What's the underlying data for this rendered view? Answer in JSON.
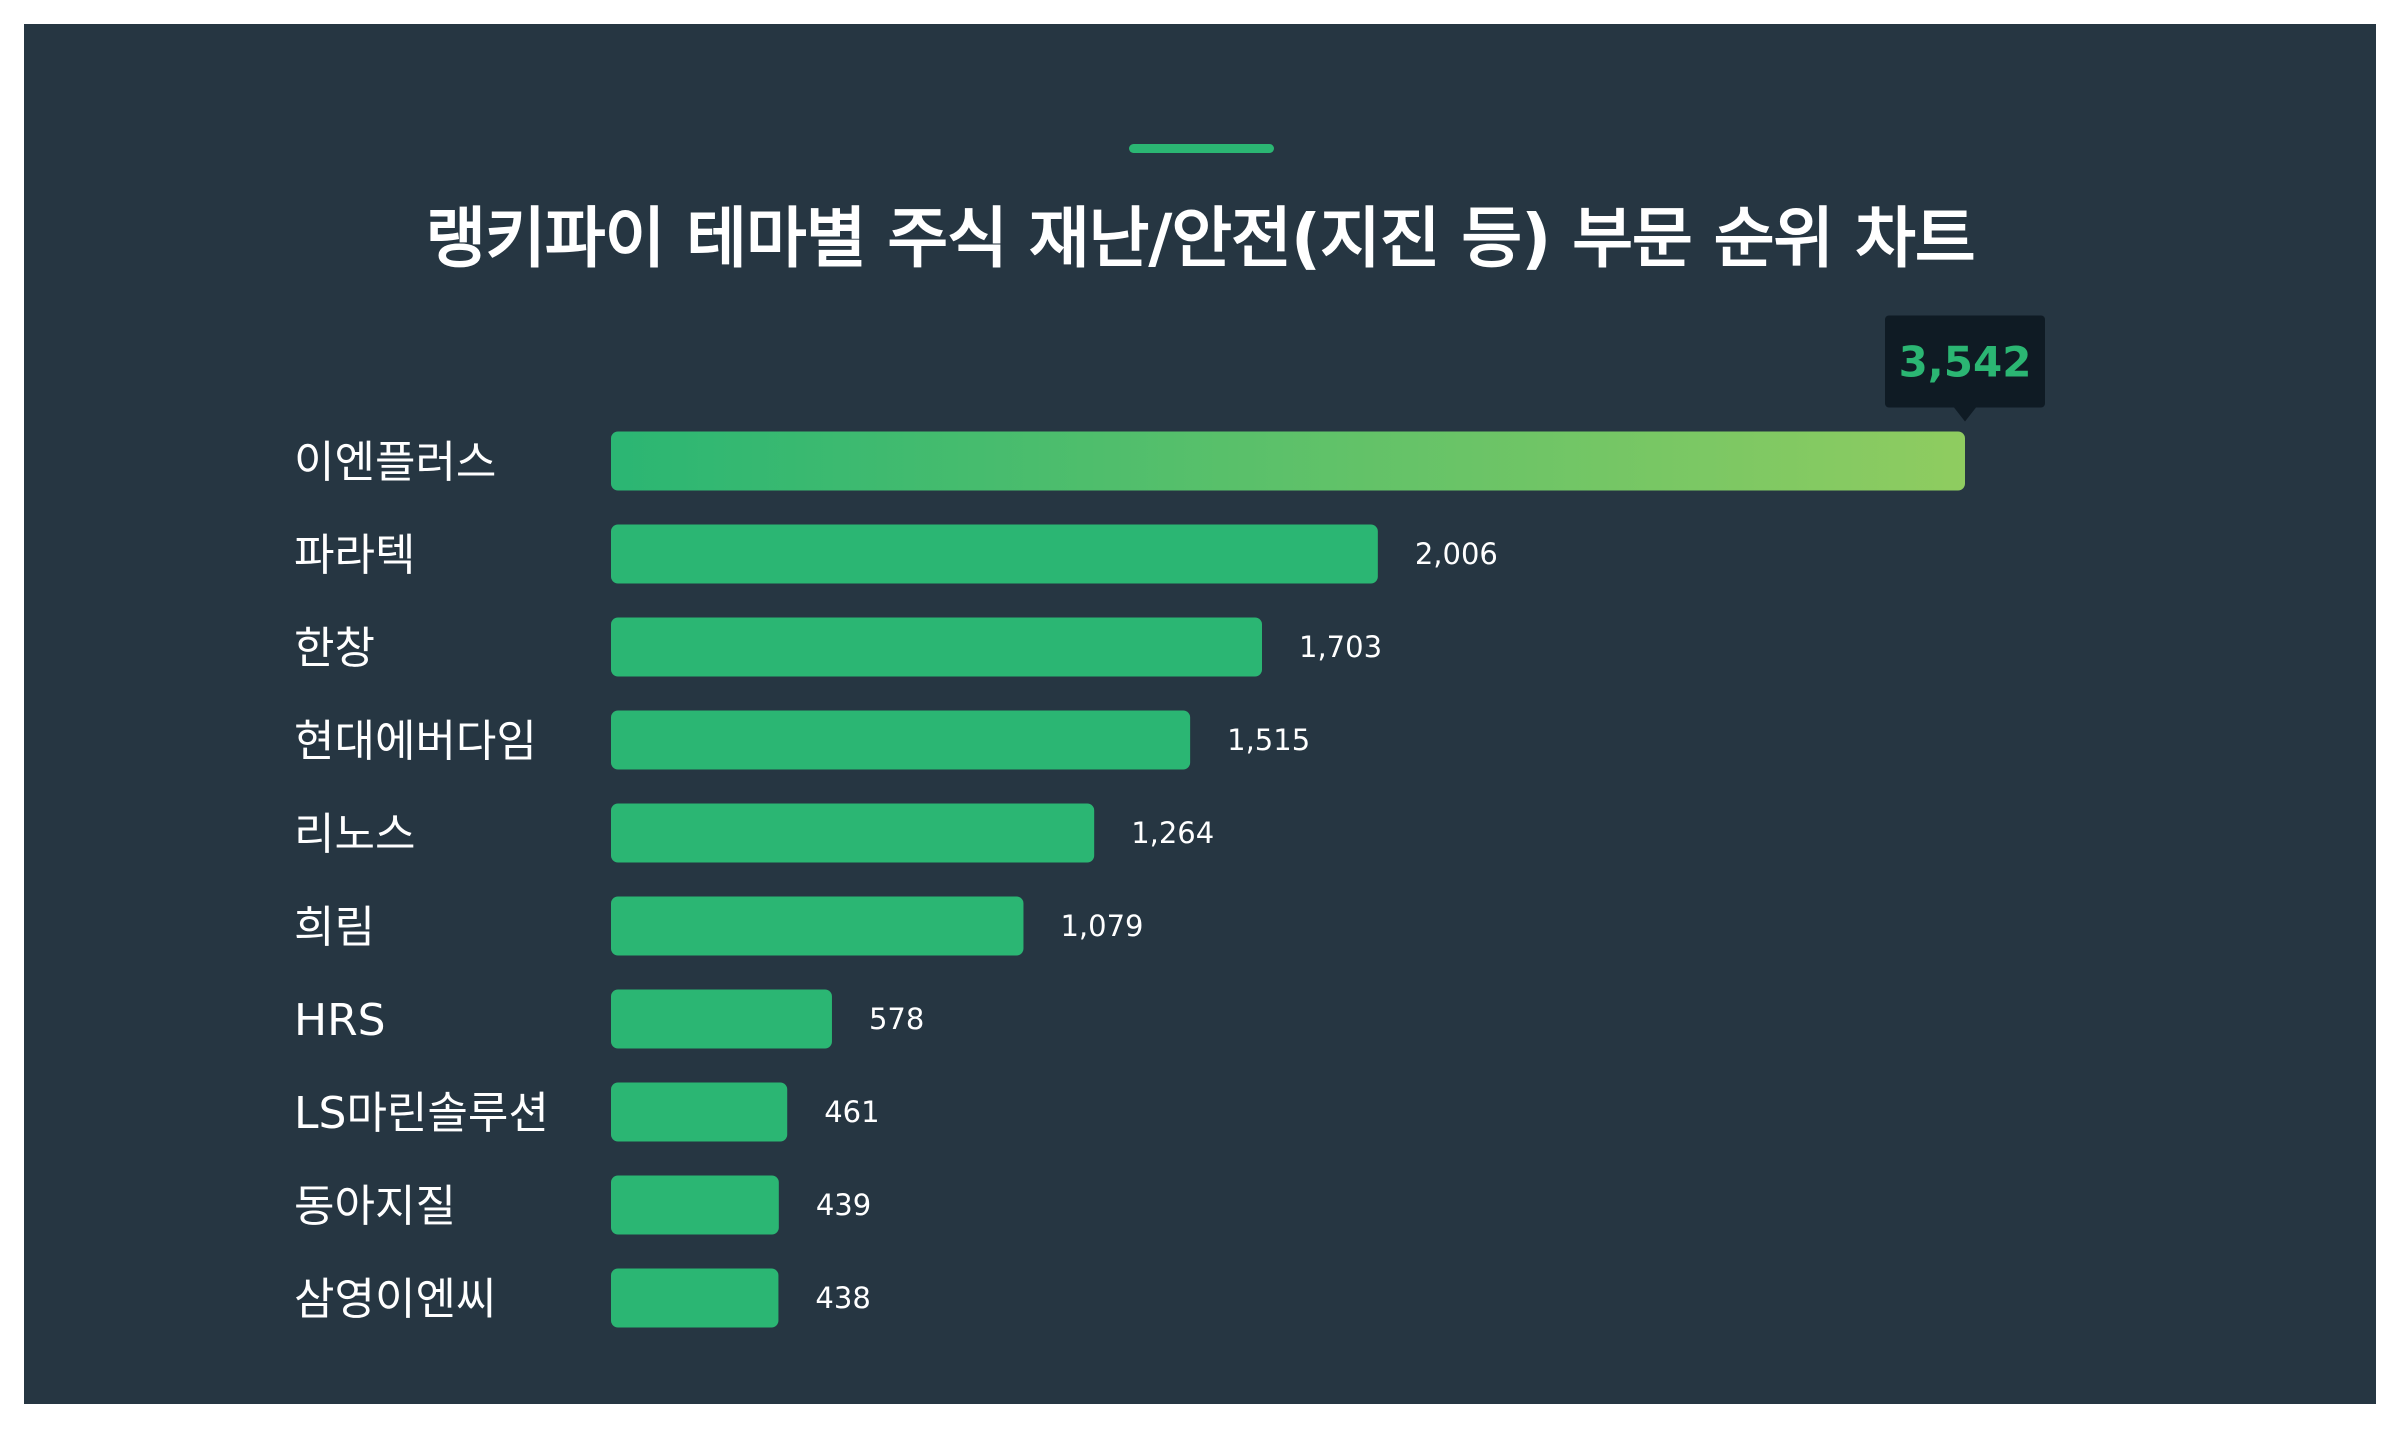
{
  "chart_data": {
    "type": "bar",
    "orientation": "horizontal",
    "title": "랭키파이 테마별 주식 재난/안전(지진 등) 부문 순위 차트",
    "categories": [
      "이엔플러스",
      "파라텍",
      "한창",
      "현대에버다임",
      "리노스",
      "희림",
      "HRS",
      "LS마린솔루션",
      "동아지질",
      "삼영이엔씨"
    ],
    "values": [
      3542,
      2006,
      1703,
      1515,
      1264,
      1079,
      578,
      461,
      439,
      438
    ],
    "value_labels": [
      "3,542",
      "2,006",
      "1,703",
      "1,515",
      "1,264",
      "1,079",
      "578",
      "461",
      "439",
      "438"
    ],
    "highlight_index": 0,
    "xlim": [
      0,
      3542
    ],
    "grid": false,
    "legend": "none"
  },
  "colors": {
    "background": "#263642",
    "page": "#ffffff",
    "bar": "#2bb673",
    "bar_gradient_start": "#2bb673",
    "bar_gradient_end": "#8fcc60",
    "accent": "#2bb673",
    "callout_background": "#0f1b24",
    "callout_text": "#2bb673",
    "text": "#ffffff"
  }
}
